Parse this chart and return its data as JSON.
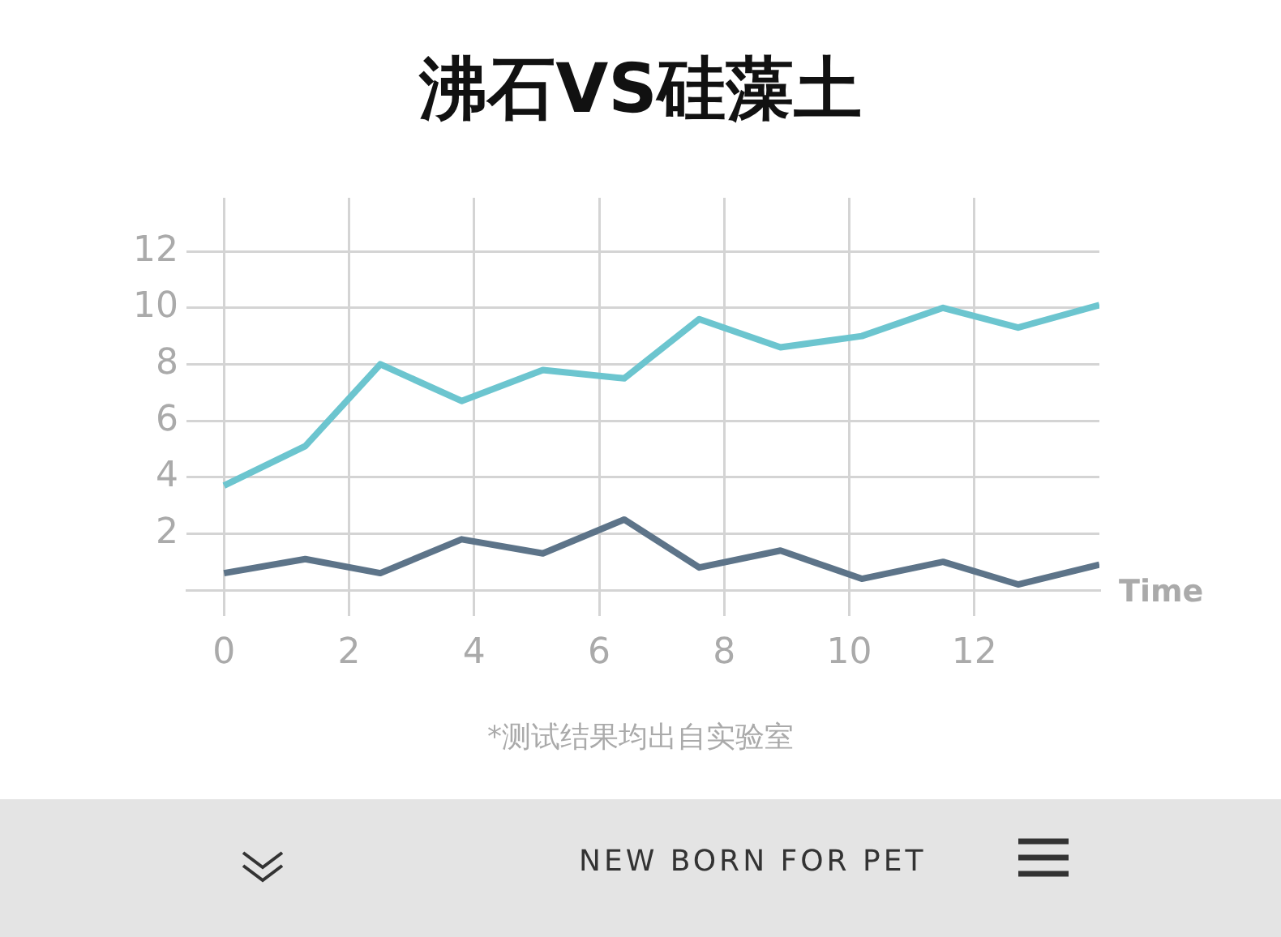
{
  "chart_data": {
    "type": "line",
    "title": "沸石VS硅藻土",
    "xlabel": "Time",
    "annotations": [
      "*测试结果均出自实验室",
      "NEW BORN FOR PET"
    ],
    "xlim": [
      -0.6,
      14
    ],
    "xticks": [
      0,
      2,
      4,
      6,
      8,
      10,
      12
    ],
    "ylim": [
      0,
      13.9
    ],
    "yticks": [
      2,
      4,
      6,
      8,
      10,
      12
    ],
    "grid": true,
    "legend": false,
    "marker": "none",
    "line_style": "solid",
    "x": [
      0,
      1.3,
      2.5,
      3.8,
      5.1,
      6.4,
      7.6,
      8.9,
      10.2,
      11.5,
      12.7,
      14
    ],
    "series": [
      {
        "color": "#6cc5cf",
        "values": [
          3.7,
          5.1,
          8.0,
          6.7,
          7.8,
          7.5,
          9.6,
          8.6,
          9.0,
          10.0,
          9.3,
          10.1
        ]
      },
      {
        "color": "#5d7489",
        "values": [
          0.6,
          1.1,
          0.6,
          1.8,
          1.3,
          2.5,
          0.8,
          1.4,
          0.4,
          1.0,
          0.2,
          0.9
        ]
      }
    ]
  }
}
